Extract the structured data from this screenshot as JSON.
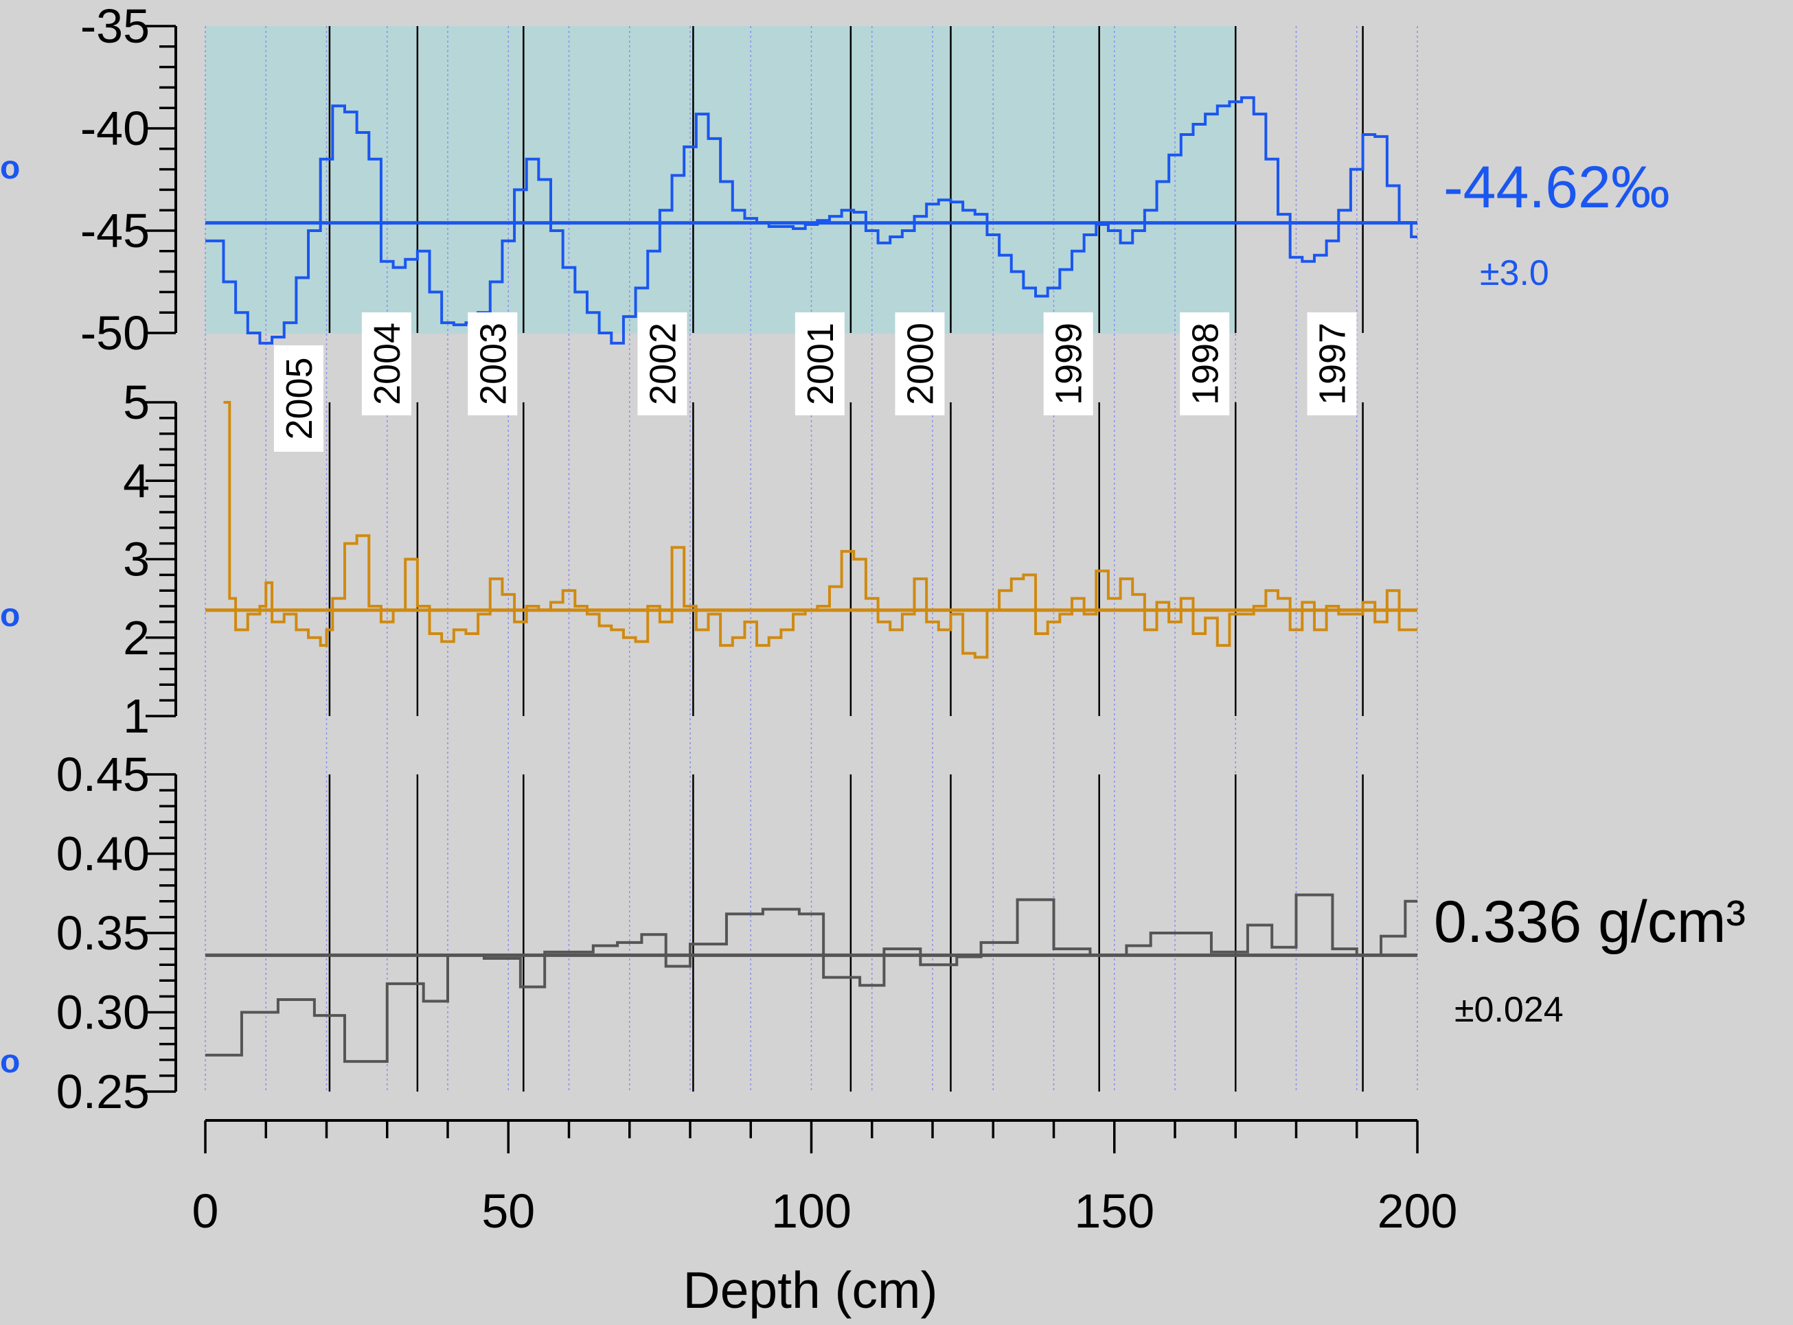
{
  "chart_data": [
    {
      "type": "line",
      "panel": "d18O",
      "color": "#1a56f0",
      "ylim": [
        -50,
        -35
      ],
      "y_ticks": [
        "-35",
        "-40",
        "-45",
        "-50"
      ],
      "mean_label": "-44.62‰",
      "std_label": "±3.0",
      "mean": -44.62,
      "left_edge_glyph": "o",
      "shaded_region": {
        "x": [
          0,
          170
        ],
        "color": "#b7d6d7"
      },
      "step_x": [
        0,
        3,
        5,
        7,
        9,
        11,
        13,
        15,
        17,
        19,
        21,
        23,
        25,
        27,
        29,
        31,
        33,
        35,
        37,
        39,
        41,
        43,
        45,
        47,
        49,
        51,
        53,
        55,
        57,
        59,
        61,
        63,
        65,
        67,
        69,
        71,
        73,
        75,
        77,
        79,
        81,
        83,
        85,
        87,
        89,
        91,
        93,
        95,
        97,
        99,
        101,
        103,
        105,
        107,
        109,
        111,
        113,
        115,
        117,
        119,
        121,
        123,
        125,
        127,
        129,
        131,
        133,
        135,
        137,
        139,
        141,
        143,
        145,
        147,
        149,
        151,
        153,
        155,
        157,
        159,
        161,
        163,
        165,
        167,
        169,
        171,
        173,
        175,
        177,
        179,
        181,
        183,
        185,
        187,
        189,
        191,
        193,
        195,
        197,
        199
      ],
      "step_y": [
        -45.5,
        -47.5,
        -49,
        -50,
        -50.5,
        -50.2,
        -49.5,
        -47.3,
        -45,
        -41.5,
        -38.9,
        -39.2,
        -40.2,
        -41.5,
        -46.5,
        -46.8,
        -46.4,
        -46,
        -48,
        -49.5,
        -49.6,
        -49.5,
        -49,
        -47.5,
        -45.5,
        -43,
        -41.5,
        -42.5,
        -45,
        -46.8,
        -48,
        -49,
        -50,
        -50.5,
        -49.2,
        -47.8,
        -46,
        -44,
        -42.3,
        -40.9,
        -39.3,
        -40.5,
        -42.6,
        -44,
        -44.4,
        -44.6,
        -44.8,
        -44.8,
        -44.9,
        -44.7,
        -44.5,
        -44.3,
        -44,
        -44.1,
        -45,
        -45.6,
        -45.3,
        -45,
        -44.3,
        -43.7,
        -43.5,
        -43.6,
        -44,
        -44.2,
        -45.2,
        -46.2,
        -47,
        -47.8,
        -48.2,
        -47.8,
        -46.9,
        -46,
        -45.2,
        -44.7,
        -45,
        -45.6,
        -45,
        -44,
        -42.6,
        -41.3,
        -40.3,
        -39.8,
        -39.3,
        -38.9,
        -38.7,
        -38.5,
        -39.3,
        -41.5,
        -44.2,
        -46.3,
        -46.5,
        -46.2,
        -45.5,
        -44,
        -42,
        -40.3,
        -40.4,
        -42.8,
        -44.6,
        -45.3
      ]
    },
    {
      "type": "line",
      "panel": "d_excess",
      "color": "#d08a10",
      "ylim": [
        1,
        5
      ],
      "y_ticks": [
        "5",
        "4",
        "3",
        "2",
        "1"
      ],
      "mean": 2.35,
      "left_edge_glyph": "o",
      "step_x": [
        0,
        3,
        4,
        5,
        7,
        9,
        10,
        11,
        13,
        15,
        17,
        19,
        20,
        21,
        23,
        25,
        27,
        29,
        31,
        33,
        35,
        37,
        39,
        41,
        43,
        45,
        47,
        49,
        51,
        53,
        55,
        57,
        59,
        61,
        63,
        65,
        67,
        69,
        71,
        73,
        75,
        77,
        79,
        81,
        83,
        85,
        87,
        89,
        91,
        93,
        95,
        97,
        99,
        101,
        103,
        105,
        107,
        109,
        111,
        113,
        115,
        117,
        119,
        121,
        123,
        125,
        127,
        129,
        131,
        133,
        135,
        137,
        139,
        141,
        143,
        145,
        147,
        149,
        151,
        153,
        155,
        157,
        159,
        161,
        163,
        165,
        167,
        169,
        171,
        173,
        175,
        177,
        179,
        181,
        183,
        185,
        187,
        189,
        191,
        193,
        195,
        197,
        199
      ],
      "step_y": [
        null,
        5,
        2.5,
        2.1,
        2.3,
        2.4,
        2.7,
        2.2,
        2.3,
        2.1,
        2,
        1.9,
        2.1,
        2.5,
        3.2,
        3.3,
        2.4,
        2.2,
        2.35,
        3,
        2.4,
        2.05,
        1.95,
        2.1,
        2.05,
        2.3,
        2.75,
        2.55,
        2.2,
        2.4,
        2.35,
        2.45,
        2.6,
        2.4,
        2.3,
        2.15,
        2.1,
        2,
        1.95,
        2.4,
        2.2,
        3.15,
        2.4,
        2.1,
        2.3,
        1.9,
        2,
        2.2,
        1.9,
        2,
        2.1,
        2.3,
        2.35,
        2.4,
        2.65,
        3.1,
        3,
        2.5,
        2.2,
        2.1,
        2.3,
        2.75,
        2.2,
        2.1,
        2.3,
        1.8,
        1.75,
        2.35,
        2.6,
        2.75,
        2.8,
        2.05,
        2.2,
        2.3,
        2.5,
        2.3,
        2.85,
        2.5,
        2.75,
        2.55,
        2.1,
        2.45,
        2.2,
        2.5,
        2.05,
        2.25,
        1.9,
        2.3,
        2.3,
        2.4,
        2.6,
        2.5,
        2.1,
        2.45,
        2.1,
        2.4,
        2.3,
        2.3,
        2.45,
        2.2,
        2.6,
        2.1,
        2.1
      ]
    },
    {
      "type": "line",
      "panel": "density",
      "color": "#555555",
      "ylim": [
        0.25,
        0.45
      ],
      "y_ticks": [
        "0.45",
        "0.40",
        "0.35",
        "0.30",
        "0.25"
      ],
      "mean_label": "0.336 g/cm³",
      "std_label": "±0.024",
      "mean": 0.336,
      "left_edge_glyph": "o",
      "step_x": [
        0,
        6,
        12,
        18,
        23,
        30,
        36,
        40,
        46,
        52,
        56,
        64,
        68,
        72,
        76,
        80,
        86,
        92,
        98,
        102,
        108,
        112,
        118,
        124,
        128,
        134,
        140,
        146,
        152,
        156,
        166,
        172,
        176,
        180,
        186,
        190,
        194,
        198
      ],
      "step_y": [
        0.273,
        0.3,
        0.308,
        0.298,
        0.269,
        0.318,
        0.307,
        0.336,
        0.334,
        0.316,
        0.338,
        0.342,
        0.344,
        0.349,
        0.329,
        0.343,
        0.362,
        0.365,
        0.362,
        0.322,
        0.317,
        0.34,
        0.33,
        0.335,
        0.344,
        0.371,
        0.34,
        0.336,
        0.342,
        0.35,
        0.338,
        0.355,
        0.341,
        0.374,
        0.34,
        0.336,
        0.348,
        0.37
      ]
    }
  ],
  "x_axis": {
    "label": "Depth (cm)",
    "ticks": [
      "0",
      "50",
      "100",
      "150",
      "200"
    ],
    "xlim": [
      0,
      200
    ]
  },
  "year_markers": [
    {
      "label": "2005",
      "depth": 20.5
    },
    {
      "label": "2004",
      "depth": 35
    },
    {
      "label": "2003",
      "depth": 52.5
    },
    {
      "label": "2002",
      "depth": 80.5
    },
    {
      "label": "2001",
      "depth": 106.5
    },
    {
      "label": "2000",
      "depth": 123
    },
    {
      "label": "1999",
      "depth": 147.5
    },
    {
      "label": "1998",
      "depth": 170
    },
    {
      "label": "1997",
      "depth": 191
    }
  ],
  "colors": {
    "background": "#d3d3d3",
    "shade": "#b7d6d7",
    "sample_lines": "#8a8cf0",
    "d18O": "#1a56f0",
    "d_excess": "#d08a10",
    "density": "#555555"
  }
}
